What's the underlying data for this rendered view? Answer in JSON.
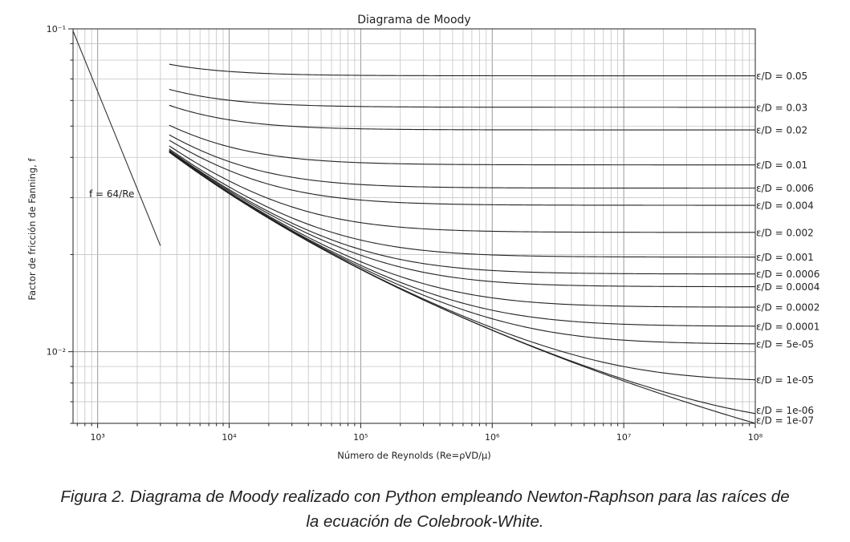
{
  "chart_data": {
    "type": "line",
    "title": "Diagrama de Moody",
    "xlabel": "Número de Reynolds (Re=ρVD/μ)",
    "ylabel": "Factor de fricción de Fanning, f",
    "xscale": "log",
    "yscale": "log",
    "xlim": [
      650,
      100000000
    ],
    "ylim": [
      0.006,
      0.1
    ],
    "grid": true,
    "xticks": [
      {
        "value": 1000,
        "label": "10³"
      },
      {
        "value": 10000,
        "label": "10⁴"
      },
      {
        "value": 100000,
        "label": "10⁵"
      },
      {
        "value": 1000000,
        "label": "10⁶"
      },
      {
        "value": 10000000,
        "label": "10⁷"
      },
      {
        "value": 100000000,
        "label": "10⁸"
      }
    ],
    "yticks": [
      {
        "value": 0.01,
        "label": "10⁻²"
      },
      {
        "value": 0.1,
        "label": "10⁻¹"
      }
    ],
    "laminar": {
      "label": "f = 64/Re",
      "x": [
        650,
        3000
      ],
      "y": [
        0.0985,
        0.0213
      ]
    },
    "turbulent_re_range": [
      3500,
      100000000
    ],
    "series": [
      {
        "name": "ε/D = 0.05",
        "label": "ε/D = 0.05",
        "roughness": 0.05
      },
      {
        "name": "ε/D = 0.03",
        "label": "ε/D = 0.03",
        "roughness": 0.03
      },
      {
        "name": "ε/D = 0.02",
        "label": "ε/D = 0.02",
        "roughness": 0.02
      },
      {
        "name": "ε/D = 0.01",
        "label": "ε/D = 0.01",
        "roughness": 0.01
      },
      {
        "name": "ε/D = 0.006",
        "label": "ε/D = 0.006",
        "roughness": 0.006
      },
      {
        "name": "ε/D = 0.004",
        "label": "ε/D = 0.004",
        "roughness": 0.004
      },
      {
        "name": "ε/D = 0.002",
        "label": "ε/D = 0.002",
        "roughness": 0.002
      },
      {
        "name": "ε/D = 0.001",
        "label": "ε/D = 0.001",
        "roughness": 0.001
      },
      {
        "name": "ε/D = 0.0006",
        "label": "ε/D = 0.0006",
        "roughness": 0.0006
      },
      {
        "name": "ε/D = 0.0004",
        "label": "ε/D = 0.0004",
        "roughness": 0.0004
      },
      {
        "name": "ε/D = 0.0002",
        "label": "ε/D = 0.0002",
        "roughness": 0.0002
      },
      {
        "name": "ε/D = 0.0001",
        "label": "ε/D = 0.0001",
        "roughness": 0.0001
      },
      {
        "name": "ε/D = 5e-05",
        "label": "ε/D = 5e-05",
        "roughness": 5e-05
      },
      {
        "name": "ε/D = 1e-05",
        "label": "ε/D = 1e-05",
        "roughness": 1e-05
      },
      {
        "name": "ε/D = 1e-06",
        "label": "ε/D = 1e-06",
        "roughness": 1e-06
      },
      {
        "name": "ε/D = 1e-07",
        "label": "ε/D = 1e-07",
        "roughness": 1e-07
      }
    ]
  },
  "caption": {
    "line1": "Figura 2. Diagrama de Moody realizado con Python empleando Newton-Raphson para las raíces de",
    "line2": "la ecuación de Colebrook-White."
  }
}
